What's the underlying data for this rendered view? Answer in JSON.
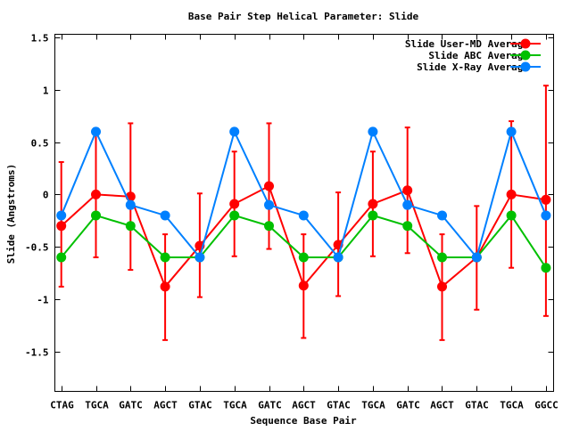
{
  "chart_data": {
    "type": "line",
    "title": "Base Pair Step Helical Parameter: Slide",
    "xlabel": "Sequence Base Pair",
    "ylabel": "Slide (Angstroms)",
    "ylim": [
      -1.88,
      1.53
    ],
    "yticks": [
      1.5,
      1,
      0.5,
      0,
      -0.5,
      -1,
      -1.5
    ],
    "ytick_labels": [
      "1.5",
      "1",
      "0.5",
      "0",
      "-0.5",
      "-1",
      "-1.5"
    ],
    "categories": [
      "CTAG",
      "TGCA",
      "GATC",
      "AGCT",
      "GTAC",
      "TGCA",
      "GATC",
      "AGCT",
      "GTAC",
      "TGCA",
      "GATC",
      "AGCT",
      "GTAC",
      "TGCA",
      "GGCC"
    ],
    "legend_position": "top-right",
    "grid": false,
    "series": [
      {
        "name": "Slide User-MD Average",
        "color": "#ff0000",
        "values": [
          -0.3,
          0.0,
          -0.02,
          -0.88,
          -0.49,
          -0.09,
          0.08,
          -0.87,
          -0.48,
          -0.09,
          0.04,
          -0.88,
          -0.6,
          0.0,
          -0.05
        ],
        "error_high": [
          0.31,
          0.6,
          0.68,
          -0.38,
          0.01,
          0.41,
          0.68,
          -0.38,
          0.02,
          0.41,
          0.64,
          -0.38,
          -0.11,
          0.7,
          1.04
        ],
        "error_low": [
          -0.88,
          -0.6,
          -0.72,
          -1.39,
          -0.98,
          -0.59,
          -0.52,
          -1.37,
          -0.97,
          -0.59,
          -0.56,
          -1.39,
          -1.1,
          -0.7,
          -1.16
        ]
      },
      {
        "name": "Slide ABC Average",
        "color": "#00c000",
        "values": [
          -0.6,
          -0.2,
          -0.3,
          -0.6,
          -0.6,
          -0.2,
          -0.3,
          -0.6,
          -0.6,
          -0.2,
          -0.3,
          -0.6,
          -0.6,
          -0.2,
          -0.7
        ]
      },
      {
        "name": "Slide X-Ray Average",
        "color": "#0080ff",
        "values": [
          -0.2,
          0.6,
          -0.1,
          -0.2,
          -0.6,
          0.6,
          -0.1,
          -0.2,
          -0.6,
          0.6,
          -0.1,
          -0.2,
          -0.6,
          0.6,
          -0.2
        ]
      }
    ]
  }
}
